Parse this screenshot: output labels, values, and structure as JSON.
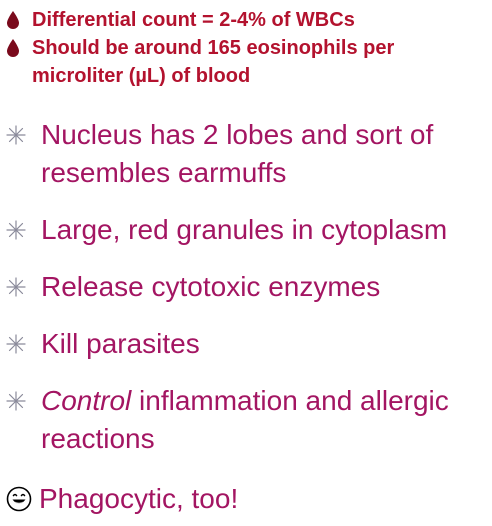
{
  "top_bullets": [
    {
      "icon": "blood-drop-icon",
      "text": "Differential count = 2-4% of WBCs"
    },
    {
      "icon": "blood-drop-icon",
      "text": "Should be around 165 eosinophils per microliter (µL) of blood"
    }
  ],
  "main_bullets": [
    {
      "icon": "sparkle-star-icon",
      "text": "Nucleus has 2 lobes and sort of resembles earmuffs"
    },
    {
      "icon": "sparkle-star-icon",
      "text": "Large, red granules in cytoplasm"
    },
    {
      "icon": "sparkle-star-icon",
      "text": "Release cytotoxic enzymes"
    },
    {
      "icon": "sparkle-star-icon",
      "text": "Kill parasites"
    },
    {
      "icon": "sparkle-star-icon",
      "text_italic": "Control",
      "text_rest": " inflammation and allergic reactions"
    }
  ],
  "closing": {
    "icon": "smiley-face-icon",
    "text": "Phagocytic, too!"
  },
  "colors": {
    "top_text": "#b3122e",
    "main_text": "#a31562",
    "drop": "#7a0a1c",
    "star": "#8a8a9a"
  }
}
